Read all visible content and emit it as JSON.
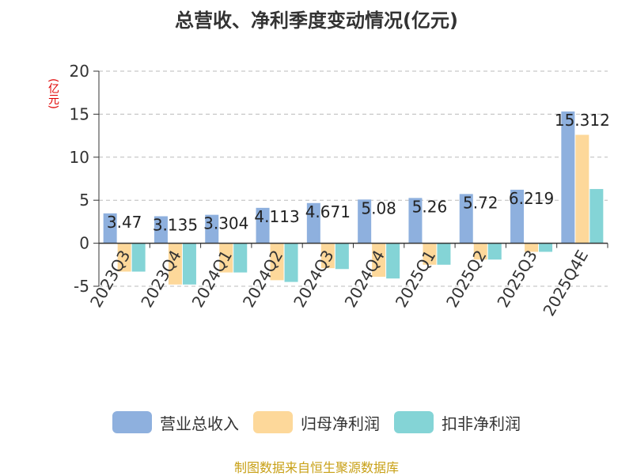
{
  "title": "总营收、净利季度变动情况(亿元)",
  "unit_label": "(亿元)",
  "source_text": "制图数据来自恒生聚源数据库",
  "legend": [
    {
      "name": "营业总收入",
      "color": "#8eb0de"
    },
    {
      "name": "归母净利润",
      "color": "#fdd89a"
    },
    {
      "name": "扣非净利润",
      "color": "#84d4d6"
    }
  ],
  "chart_data": {
    "type": "bar",
    "title": "总营收、净利季度变动情况(亿元)",
    "ylabel": "(亿元)",
    "xlabel": "",
    "categories": [
      "2023Q3",
      "2023Q4",
      "2024Q1",
      "2024Q2",
      "2024Q3",
      "2024Q4",
      "2025Q1",
      "2025Q2",
      "2025Q3",
      "2025Q4E"
    ],
    "ylim": [
      -5,
      20
    ],
    "yticks": [
      20,
      15,
      10,
      5,
      0,
      -5
    ],
    "grid": "horizontal-dashed",
    "legend_position": "bottom",
    "series": [
      {
        "name": "营业总收入",
        "color": "#8eb0de",
        "values": [
          3.47,
          3.135,
          3.304,
          4.113,
          4.671,
          5.08,
          5.26,
          5.72,
          6.219,
          15.312
        ],
        "labels": [
          "3.47",
          "3.135",
          "3.304",
          "4.113",
          "4.671",
          "5.08",
          "5.26",
          "5.72",
          "6.219",
          "15.312"
        ]
      },
      {
        "name": "归母净利润",
        "color": "#fdd89a",
        "values": [
          -3.3,
          -4.8,
          -3.4,
          -4.3,
          -2.9,
          -3.9,
          -2.5,
          -1.9,
          -1.0,
          12.6
        ]
      },
      {
        "name": "扣非净利润",
        "color": "#84d4d6",
        "values": [
          -3.3,
          -4.8,
          -3.4,
          -4.5,
          -3.0,
          -4.1,
          -2.5,
          -1.9,
          -1.0,
          6.3
        ]
      }
    ]
  }
}
